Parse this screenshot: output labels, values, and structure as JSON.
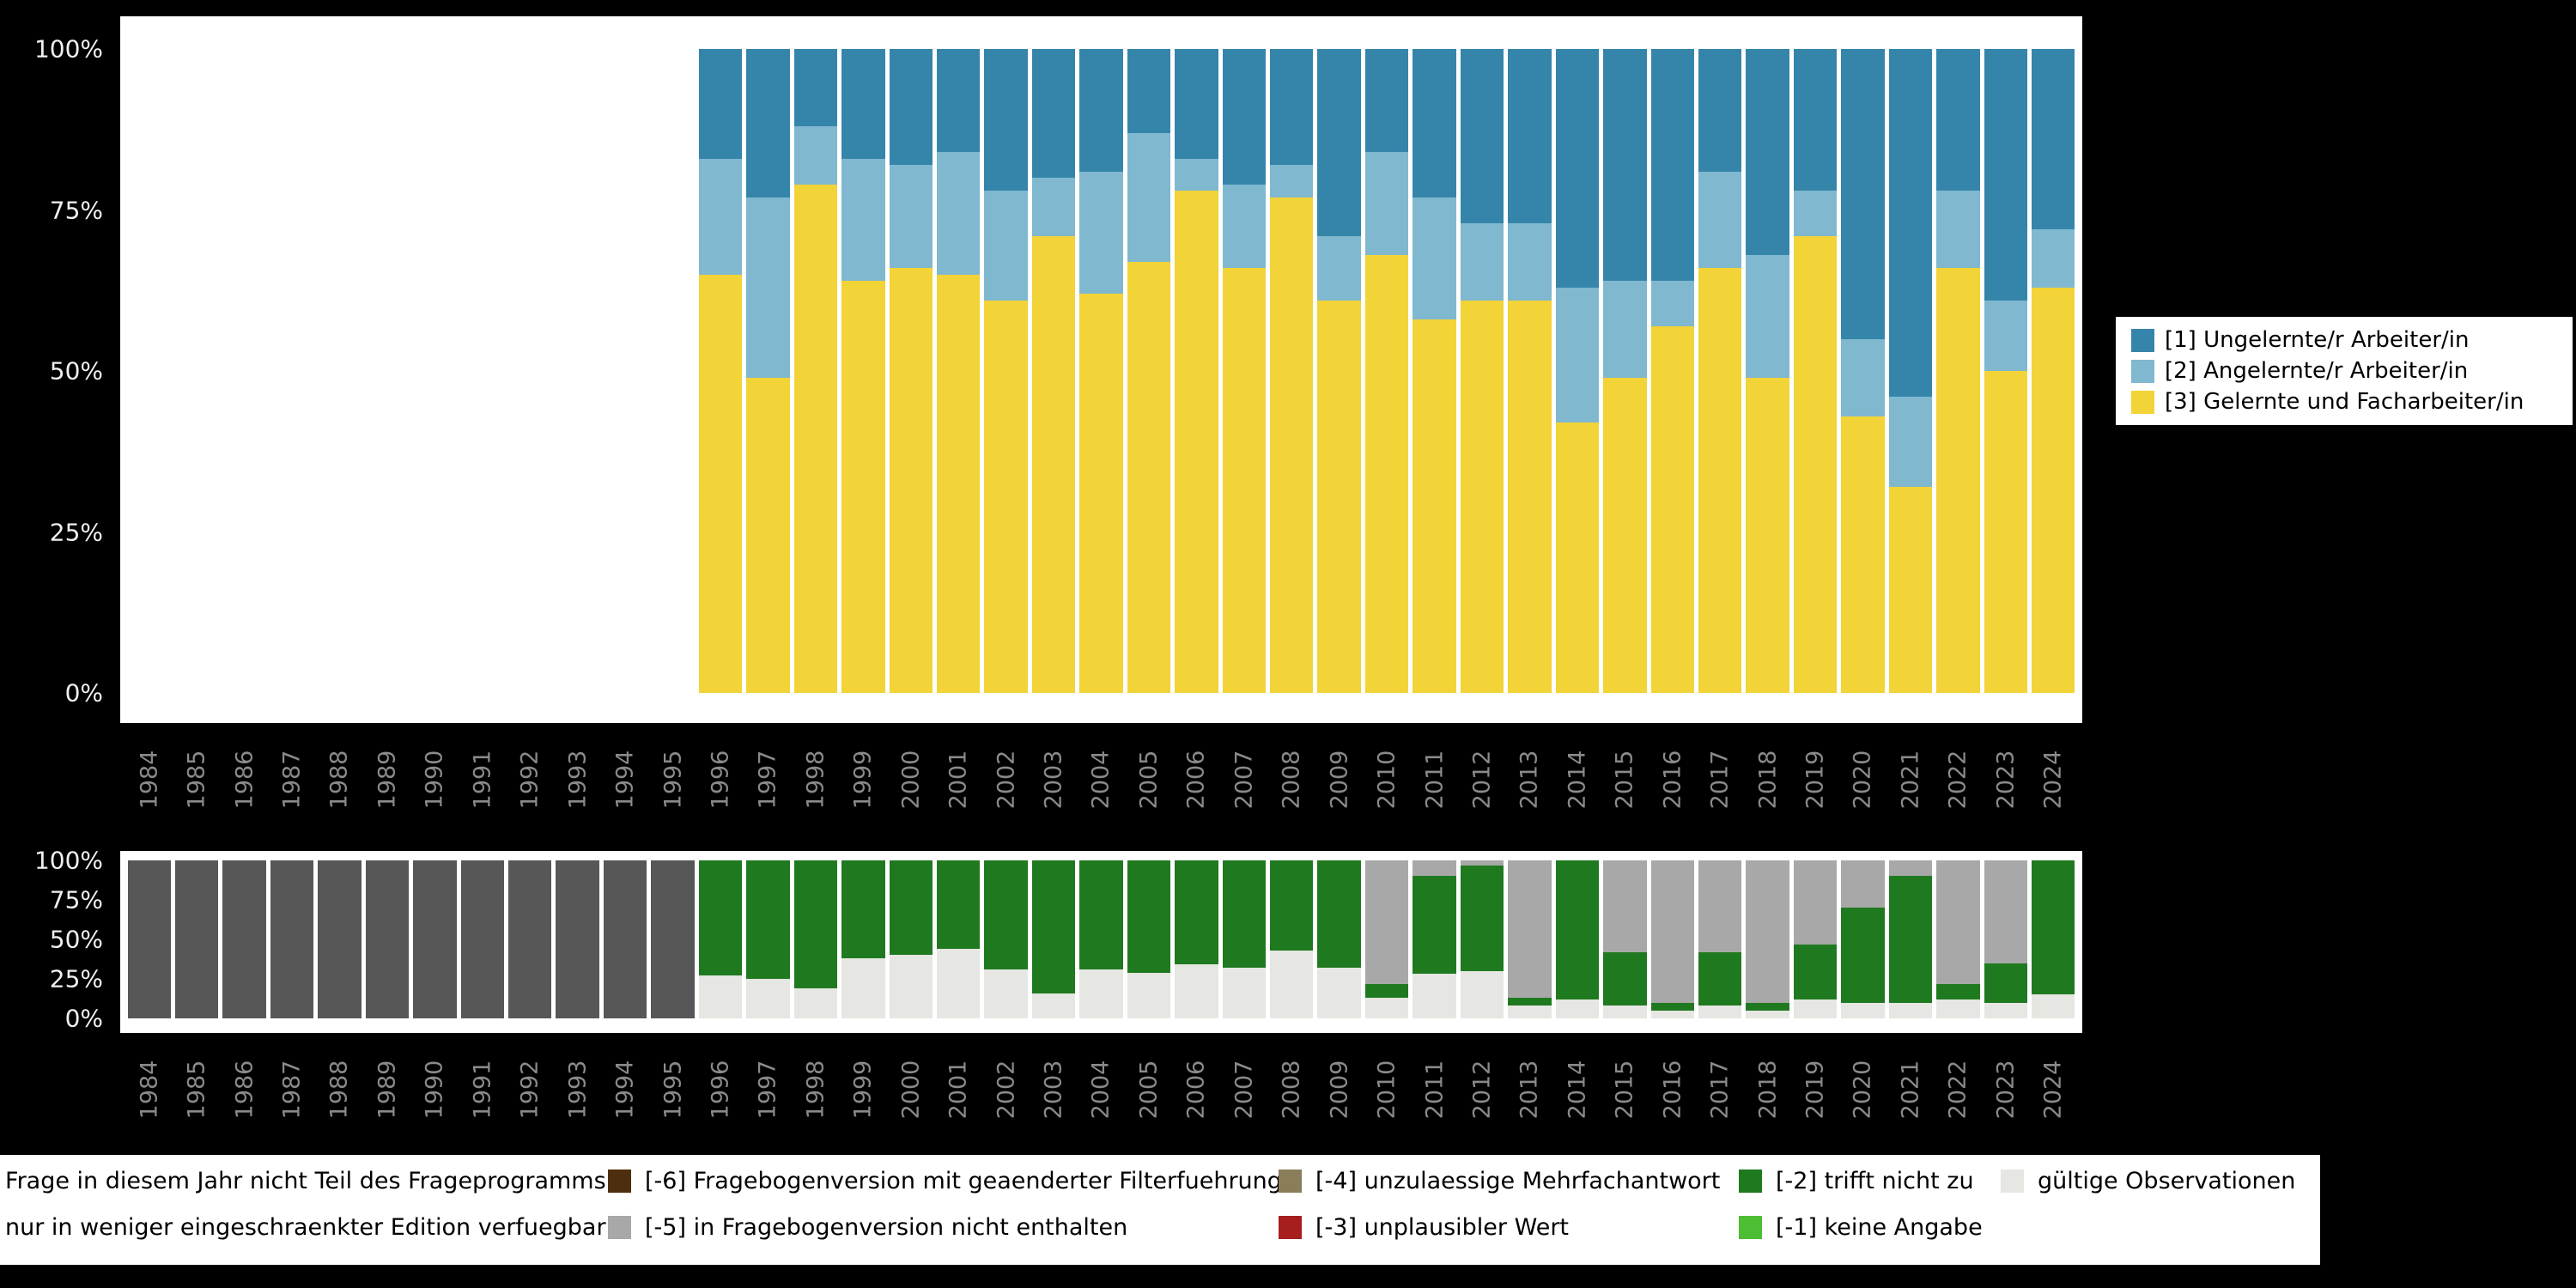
{
  "colors": {
    "background": "#000000",
    "panel": "#ffffff",
    "axis_text_y": "#f0f0f0",
    "axis_text_x": "#8a8a8a",
    "cat1_ungelernt": "#3585ab",
    "cat2_angelernt": "#7fb8cf",
    "cat3_gelernt": "#f2d338",
    "not_in_program": "#575757",
    "restricted_edition": "#a8a8a8",
    "valid_obs": "#e6e6e2",
    "code_m6": "#4d2e0e",
    "code_m5": "#a8a8a8",
    "code_m4": "#8a7d5a",
    "code_m3": "#a61e1e",
    "code_m2": "#1f7a1f",
    "code_m1": "#4dbd33"
  },
  "chart_data": [
    {
      "type": "bar",
      "stacked": true,
      "title": "",
      "xlabel": "",
      "ylabel": "",
      "ylim": [
        0,
        100
      ],
      "grid": false,
      "legend_position": "right",
      "y_ticks": [
        "0%",
        "25%",
        "50%",
        "75%",
        "100%"
      ],
      "categories": [
        "1984",
        "1985",
        "1986",
        "1987",
        "1988",
        "1989",
        "1990",
        "1991",
        "1992",
        "1993",
        "1994",
        "1995",
        "1996",
        "1997",
        "1998",
        "1999",
        "2000",
        "2001",
        "2002",
        "2003",
        "2004",
        "2005",
        "2006",
        "2007",
        "2008",
        "2009",
        "2010",
        "2011",
        "2012",
        "2013",
        "2014",
        "2015",
        "2016",
        "2017",
        "2018",
        "2019",
        "2020",
        "2021",
        "2022",
        "2023",
        "2024"
      ],
      "series": [
        {
          "name": "[3] Gelernte und Facharbeiter/in",
          "color": "#f2d338",
          "values": [
            null,
            null,
            null,
            null,
            null,
            null,
            null,
            null,
            null,
            null,
            null,
            null,
            65,
            49,
            79,
            64,
            66,
            65,
            61,
            71,
            62,
            67,
            78,
            66,
            77,
            61,
            68,
            58,
            61,
            61,
            42,
            49,
            57,
            66,
            49,
            71,
            43,
            32,
            66,
            50,
            63
          ]
        },
        {
          "name": "[2] Angelernte/r Arbeiter/in",
          "color": "#7fb8cf",
          "values": [
            null,
            null,
            null,
            null,
            null,
            null,
            null,
            null,
            null,
            null,
            null,
            null,
            18,
            28,
            9,
            19,
            16,
            19,
            17,
            9,
            19,
            20,
            5,
            13,
            5,
            10,
            16,
            19,
            12,
            12,
            21,
            15,
            7,
            15,
            19,
            7,
            12,
            14,
            12,
            11,
            9
          ]
        },
        {
          "name": "[1] Ungelernte/r Arbeiter/in",
          "color": "#3585ab",
          "values": [
            null,
            null,
            null,
            null,
            null,
            null,
            null,
            null,
            null,
            null,
            null,
            null,
            17,
            23,
            12,
            17,
            18,
            16,
            22,
            20,
            19,
            13,
            17,
            21,
            18,
            29,
            16,
            23,
            27,
            27,
            37,
            36,
            36,
            19,
            32,
            22,
            45,
            54,
            22,
            39,
            28
          ]
        }
      ]
    },
    {
      "type": "bar",
      "stacked": true,
      "title": "",
      "xlabel": "",
      "ylabel": "",
      "ylim": [
        0,
        100
      ],
      "grid": false,
      "legend_position": "bottom",
      "y_ticks": [
        "0%",
        "25%",
        "50%",
        "75%",
        "100%"
      ],
      "categories": [
        "1984",
        "1985",
        "1986",
        "1987",
        "1988",
        "1989",
        "1990",
        "1991",
        "1992",
        "1993",
        "1994",
        "1995",
        "1996",
        "1997",
        "1998",
        "1999",
        "2000",
        "2001",
        "2002",
        "2003",
        "2004",
        "2005",
        "2006",
        "2007",
        "2008",
        "2009",
        "2010",
        "2011",
        "2012",
        "2013",
        "2014",
        "2015",
        "2016",
        "2017",
        "2018",
        "2019",
        "2020",
        "2021",
        "2022",
        "2023",
        "2024"
      ],
      "series": [
        {
          "name": "Frage in diesem Jahr nicht Teil des Frageprogramms",
          "color": "#575757",
          "values": [
            100,
            100,
            100,
            100,
            100,
            100,
            100,
            100,
            100,
            100,
            100,
            100,
            0,
            0,
            0,
            0,
            0,
            0,
            0,
            0,
            0,
            0,
            0,
            0,
            0,
            0,
            0,
            0,
            0,
            0,
            0,
            0,
            0,
            0,
            0,
            0,
            0,
            0,
            0,
            0,
            0
          ]
        },
        {
          "name": "gültige Observationen",
          "color": "#e6e6e2",
          "values": [
            0,
            0,
            0,
            0,
            0,
            0,
            0,
            0,
            0,
            0,
            0,
            0,
            27,
            25,
            19,
            38,
            40,
            44,
            31,
            16,
            31,
            29,
            34,
            32,
            43,
            32,
            13,
            28,
            30,
            8,
            12,
            8,
            5,
            8,
            5,
            12,
            10,
            10,
            12,
            10,
            15
          ]
        },
        {
          "name": "[-2] trifft nicht zu",
          "color": "#1f7a1f",
          "values": [
            0,
            0,
            0,
            0,
            0,
            0,
            0,
            0,
            0,
            0,
            0,
            0,
            73,
            75,
            81,
            62,
            60,
            56,
            69,
            84,
            69,
            71,
            66,
            68,
            57,
            68,
            9,
            62,
            67,
            5,
            88,
            34,
            5,
            34,
            5,
            35,
            60,
            80,
            10,
            25,
            85
          ]
        },
        {
          "name": "[-5] in Fragebogenversion nicht enthalten",
          "color": "#a8a8a8",
          "values": [
            0,
            0,
            0,
            0,
            0,
            0,
            0,
            0,
            0,
            0,
            0,
            0,
            0,
            0,
            0,
            0,
            0,
            0,
            0,
            0,
            0,
            0,
            0,
            0,
            0,
            0,
            78,
            10,
            3,
            87,
            0,
            58,
            90,
            58,
            90,
            53,
            30,
            10,
            78,
            65,
            0
          ]
        }
      ]
    }
  ],
  "legend_right": {
    "items": [
      {
        "label": "[1] Ungelernte/r Arbeiter/in",
        "color": "#3585ab"
      },
      {
        "label": "[2] Angelernte/r Arbeiter/in",
        "color": "#7fb8cf"
      },
      {
        "label": "[3] Gelernte und Facharbeiter/in",
        "color": "#f2d338"
      }
    ]
  },
  "legend_bottom": {
    "columns": [
      {
        "items": [
          {
            "label": "Frage in diesem Jahr nicht Teil des Frageprogramms",
            "color": null
          },
          {
            "label": "nur in weniger eingeschraenkter Edition verfuegbar",
            "color": null
          }
        ]
      },
      {
        "items": [
          {
            "label": "[-6] Fragebogenversion mit geaenderter Filterfuehrung",
            "color": "#4d2e0e"
          },
          {
            "label": "[-5] in Fragebogenversion nicht enthalten",
            "color": "#a8a8a8"
          }
        ]
      },
      {
        "items": [
          {
            "label": "[-4] unzulaessige Mehrfachantwort",
            "color": "#8a7d5a"
          },
          {
            "label": "[-3] unplausibler Wert",
            "color": "#a61e1e"
          }
        ]
      },
      {
        "items": [
          {
            "label": "[-2] trifft nicht zu",
            "color": "#1f7a1f"
          },
          {
            "label": "[-1] keine Angabe",
            "color": "#4dbd33"
          }
        ]
      },
      {
        "items": [
          {
            "label": "gültige Observationen",
            "color": "#e6e6e2"
          }
        ]
      }
    ]
  }
}
